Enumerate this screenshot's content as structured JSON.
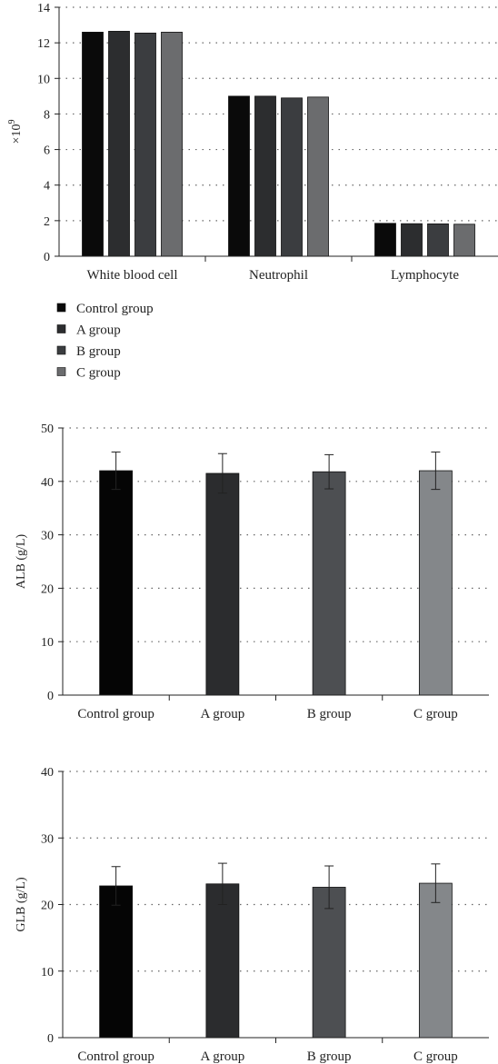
{
  "chart_data": [
    {
      "type": "bar",
      "ylabel_base": "×10",
      "ylabel_sup": "9",
      "ylim": [
        0,
        14
      ],
      "yticks": [
        0,
        2,
        4,
        6,
        8,
        10,
        12,
        14
      ],
      "categories": [
        "White blood cell",
        "Neutrophil",
        "Lymphocyte"
      ],
      "series": [
        {
          "name": "Control group",
          "color": "#0a0a0a",
          "values": [
            12.6,
            9.0,
            1.85
          ]
        },
        {
          "name": "A group",
          "color": "#2c2d2f",
          "values": [
            12.65,
            9.0,
            1.83
          ]
        },
        {
          "name": "B group",
          "color": "#3b3d40",
          "values": [
            12.55,
            8.9,
            1.82
          ]
        },
        {
          "name": "C group",
          "color": "#6b6c6e",
          "values": [
            12.6,
            8.95,
            1.8
          ]
        }
      ],
      "grid": true,
      "legend_position": "bottom-left"
    },
    {
      "type": "bar",
      "ylabel": "ALB (g/L)",
      "ylim": [
        0,
        50
      ],
      "yticks": [
        0,
        10,
        20,
        30,
        40,
        50
      ],
      "categories": [
        "Control group",
        "A group",
        "B group",
        "C group"
      ],
      "colors": [
        "#050505",
        "#2b2c2e",
        "#4d4f52",
        "#84878a"
      ],
      "values": [
        42.0,
        41.5,
        41.8,
        42.0
      ],
      "errors": [
        3.5,
        3.7,
        3.2,
        3.5
      ],
      "grid": true
    },
    {
      "type": "bar",
      "ylabel": "GLB (g/L)",
      "ylim": [
        0,
        40
      ],
      "yticks": [
        0,
        10,
        20,
        30,
        40
      ],
      "categories": [
        "Control group",
        "A group",
        "B group",
        "C group"
      ],
      "colors": [
        "#050505",
        "#2b2c2e",
        "#4d4f52",
        "#84878a"
      ],
      "values": [
        22.8,
        23.1,
        22.6,
        23.2
      ],
      "errors": [
        2.9,
        3.1,
        3.2,
        2.9
      ],
      "grid": true
    }
  ]
}
